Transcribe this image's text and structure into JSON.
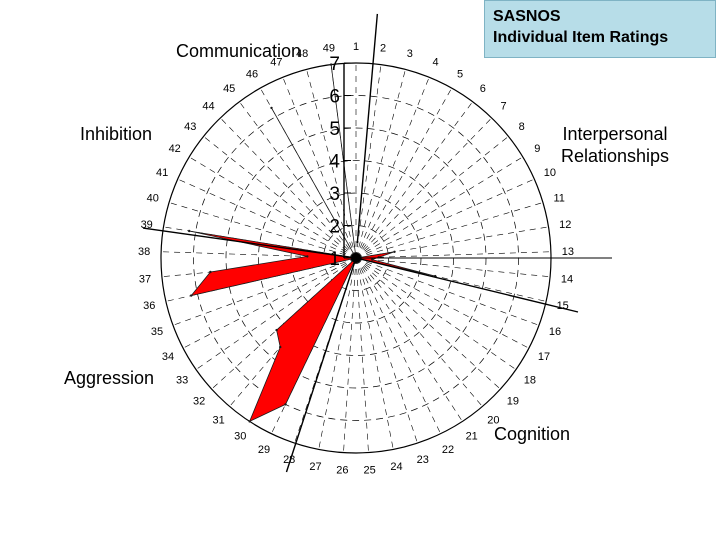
{
  "title_box": {
    "line1": "SASNOS",
    "line2": "Individual Item Ratings",
    "background": "#b7dde8"
  },
  "domains": {
    "communication": "Communication",
    "inhibition": "Inhibition",
    "interpersonal_line1": "Interpersonal",
    "interpersonal_line2": "Relationships",
    "aggression": "Aggression",
    "cognition": "Cognition"
  },
  "chart_data": {
    "type": "radar",
    "title": "SASNOS Individual Item Ratings",
    "categories": [
      "1",
      "2",
      "3",
      "4",
      "5",
      "6",
      "7",
      "8",
      "9",
      "10",
      "11",
      "12",
      "13",
      "14",
      "15",
      "16",
      "17",
      "18",
      "19",
      "20",
      "21",
      "22",
      "23",
      "24",
      "25",
      "26",
      "27",
      "28",
      "29",
      "30",
      "31",
      "32",
      "33",
      "34",
      "35",
      "36",
      "37",
      "38",
      "39",
      "40",
      "41",
      "42",
      "43",
      "44",
      "45",
      "46",
      "47",
      "48",
      "49"
    ],
    "radial_ticks": [
      "1",
      "2",
      "3",
      "4",
      "5",
      "6",
      "7"
    ],
    "rlim": [
      1,
      7
    ],
    "series": [
      {
        "values": [
          1,
          1,
          1,
          1,
          1,
          1,
          1,
          1,
          1,
          1,
          1,
          2.2,
          1.7,
          1.5,
          3.5,
          1,
          1,
          1,
          1,
          1,
          1,
          1,
          1,
          1,
          1,
          1,
          1,
          1,
          6,
          7,
          4.6,
          4.3,
          1,
          1,
          1,
          6.2,
          5.5,
          2.5,
          6.2,
          1,
          1,
          1,
          1,
          1,
          1,
          6.3,
          1,
          1,
          7
        ]
      }
    ],
    "colors": {
      "fill": "#ff0000",
      "stroke": "#1a1a1a",
      "grid": "#000000"
    },
    "grid": true,
    "legend": "none"
  }
}
